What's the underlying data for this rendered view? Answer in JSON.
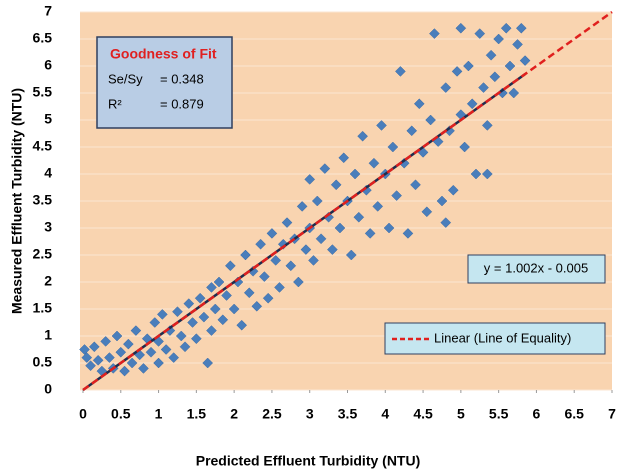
{
  "chart_data": {
    "type": "scatter",
    "xlabel": "Predicted Effluent Turbidity (NTU)",
    "ylabel": "Measured Effluent Turbidity (NTU)",
    "xlim": [
      0,
      7
    ],
    "ylim": [
      0,
      7
    ],
    "xticks": [
      0,
      0.5,
      1,
      1.5,
      2,
      2.5,
      3,
      3.5,
      4,
      4.5,
      5,
      5.5,
      6,
      6.5,
      7
    ],
    "yticks": [
      0,
      0.5,
      1,
      1.5,
      2,
      2.5,
      3,
      3.5,
      4,
      4.5,
      5,
      5.5,
      6,
      6.5,
      7
    ],
    "grid": true,
    "color": "#4a7ebb",
    "x": [
      0.02,
      0.05,
      0.1,
      0.15,
      0.2,
      0.25,
      0.3,
      0.35,
      0.4,
      0.45,
      0.5,
      0.55,
      0.6,
      0.65,
      0.7,
      0.75,
      0.8,
      0.85,
      0.9,
      0.95,
      1.0,
      1.0,
      1.05,
      1.1,
      1.15,
      1.2,
      1.25,
      1.3,
      1.35,
      1.4,
      1.45,
      1.5,
      1.55,
      1.6,
      1.65,
      1.7,
      1.7,
      1.75,
      1.8,
      1.85,
      1.9,
      1.95,
      2.0,
      2.05,
      2.1,
      2.15,
      2.2,
      2.25,
      2.3,
      2.35,
      2.4,
      2.45,
      2.5,
      2.55,
      2.6,
      2.65,
      2.7,
      2.75,
      2.8,
      2.85,
      2.9,
      2.95,
      3.0,
      3.0,
      3.05,
      3.1,
      3.15,
      3.2,
      3.25,
      3.3,
      3.35,
      3.4,
      3.45,
      3.5,
      3.55,
      3.6,
      3.65,
      3.7,
      3.75,
      3.8,
      3.85,
      3.9,
      3.95,
      4.0,
      4.05,
      4.1,
      4.15,
      4.2,
      4.25,
      4.3,
      4.35,
      4.4,
      4.45,
      4.5,
      4.55,
      4.6,
      4.65,
      4.7,
      4.75,
      4.8,
      4.85,
      4.9,
      4.95,
      5.0,
      5.0,
      5.05,
      5.1,
      5.15,
      5.2,
      5.25,
      5.3,
      5.35,
      5.4,
      5.45,
      5.5,
      5.55,
      5.6,
      5.65,
      5.7,
      5.75,
      5.8,
      5.85,
      4.8,
      5.35
    ],
    "y": [
      0.75,
      0.6,
      0.45,
      0.8,
      0.55,
      0.35,
      0.9,
      0.6,
      0.4,
      1.0,
      0.7,
      0.35,
      0.85,
      0.5,
      1.1,
      0.65,
      0.4,
      0.95,
      0.7,
      1.25,
      0.9,
      0.5,
      1.4,
      0.75,
      1.1,
      0.6,
      1.45,
      1.0,
      0.8,
      1.6,
      1.25,
      0.95,
      1.7,
      1.35,
      0.5,
      1.9,
      1.1,
      1.5,
      2.0,
      1.3,
      1.75,
      2.3,
      1.5,
      2.0,
      1.2,
      2.5,
      1.8,
      2.2,
      1.55,
      2.7,
      2.1,
      1.7,
      2.9,
      2.4,
      1.9,
      2.7,
      3.1,
      2.3,
      2.8,
      2.0,
      3.4,
      2.6,
      3.9,
      3.0,
      2.4,
      3.5,
      2.8,
      4.1,
      3.2,
      2.6,
      3.8,
      3.0,
      4.3,
      3.5,
      2.5,
      4.0,
      3.2,
      4.7,
      3.7,
      2.9,
      4.2,
      3.4,
      4.9,
      4.0,
      3.0,
      4.5,
      3.6,
      5.9,
      4.2,
      2.9,
      4.8,
      3.8,
      5.3,
      4.4,
      3.3,
      5.0,
      6.6,
      4.6,
      3.5,
      5.6,
      4.8,
      3.7,
      5.9,
      5.1,
      6.7,
      4.5,
      6.0,
      5.3,
      4.0,
      6.6,
      5.6,
      4.9,
      6.2,
      5.8,
      6.5,
      5.5,
      6.7,
      6.0,
      5.5,
      6.4,
      6.7,
      6.1,
      3.1,
      4.0
    ],
    "regression_line": {
      "x": [
        0,
        5.85
      ],
      "y": [
        0,
        5.85
      ],
      "color": "#1f2d4d"
    },
    "equality_line": {
      "name": "Linear (Line of Equality)",
      "x": [
        0,
        7
      ],
      "y": [
        0,
        7
      ],
      "color": "#e0201e"
    },
    "fit_box": {
      "title": "Goodness of Fit",
      "se_label": "Se/Sy",
      "se_value": "= 0.348",
      "r2_label": "R²",
      "r2_value": "= 0.879"
    },
    "equation": "y = 1.002x - 0.005"
  }
}
